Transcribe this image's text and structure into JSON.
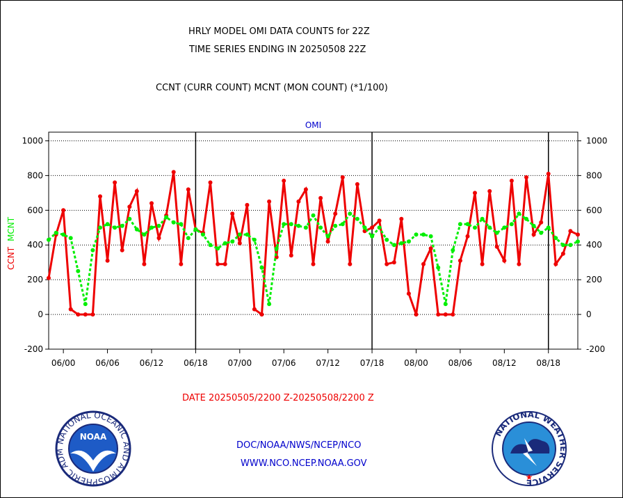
{
  "titles": {
    "line1": "HRLY MODEL OMI DATA COUNTS for 22Z",
    "line2": "TIME SERIES ENDING IN 20250508 22Z",
    "line3": "CCNT (CURR COUNT) MCNT (MON COUNT) (*1/100)"
  },
  "chart_data": {
    "type": "line",
    "title": "OMI",
    "xlabel": "DATE 20250505/2200 Z-20250508/2200 Z",
    "ylabel_left": [
      "CCNT",
      "MCNT"
    ],
    "ylim": [
      -200,
      1050
    ],
    "yticks": [
      -200,
      0,
      200,
      400,
      600,
      800,
      1000
    ],
    "ytick_labels": [
      "-200",
      "0",
      "200",
      "400",
      "600",
      "800",
      "1000"
    ],
    "grid": true,
    "x_tick_labels": [
      "06/00",
      "06/06",
      "06/12",
      "06/18",
      "07/00",
      "07/06",
      "07/12",
      "07/18",
      "08/00",
      "08/06",
      "08/12",
      "08/18"
    ],
    "x_tick_hours": [
      2,
      8,
      14,
      20,
      26,
      32,
      38,
      44,
      50,
      56,
      62,
      68
    ],
    "x_range_hours": [
      0,
      72
    ],
    "day_boundaries_hours": [
      20,
      44,
      68
    ],
    "series": [
      {
        "name": "CCNT",
        "color": "#ee0000",
        "style": "solid",
        "values": [
          210,
          460,
          600,
          30,
          0,
          0,
          0,
          680,
          310,
          760,
          370,
          620,
          710,
          290,
          640,
          440,
          570,
          820,
          290,
          720,
          490,
          470,
          760,
          290,
          290,
          580,
          410,
          630,
          30,
          0,
          650,
          330,
          770,
          340,
          650,
          720,
          290,
          670,
          420,
          580,
          790,
          290,
          750,
          480,
          500,
          540,
          290,
          300,
          550,
          120,
          0,
          290,
          380,
          0,
          0,
          0,
          310,
          450,
          700,
          290,
          710,
          390,
          310,
          770,
          290,
          790,
          460,
          530,
          810,
          290,
          350,
          480,
          460
        ]
      },
      {
        "name": "MCNT",
        "color": "#00ee00",
        "style": "dotted",
        "values": [
          430,
          470,
          460,
          440,
          250,
          60,
          370,
          500,
          520,
          500,
          510,
          550,
          490,
          460,
          500,
          510,
          560,
          530,
          520,
          440,
          490,
          460,
          400,
          380,
          410,
          420,
          460,
          460,
          430,
          270,
          60,
          380,
          520,
          520,
          510,
          500,
          570,
          500,
          450,
          510,
          520,
          580,
          550,
          500,
          450,
          500,
          430,
          400,
          410,
          420,
          460,
          460,
          450,
          270,
          60,
          370,
          520,
          520,
          500,
          550,
          500,
          470,
          500,
          520,
          580,
          550,
          510,
          470,
          500,
          440,
          400,
          400,
          420
        ]
      }
    ]
  },
  "footer": {
    "line1": "DOC/NOAA/NWS/NCEP/NCO",
    "line2": "WWW.NCO.NCEP.NOAA.GOV"
  },
  "logos": {
    "noaa": "NOAA",
    "noaa_ring": "NATIONAL OCEANIC AND ATMOSPHERIC ADMINISTRATION · U.S. DEPARTMENT OF COMMERCE",
    "nws_ring": "NATIONAL WEATHER SERVICE"
  },
  "colors": {
    "ccnt": "#ee0000",
    "mcnt": "#00ee00",
    "series_title": "#0000cc",
    "xlabel": "#ee0000",
    "footer": "#0000cc"
  }
}
